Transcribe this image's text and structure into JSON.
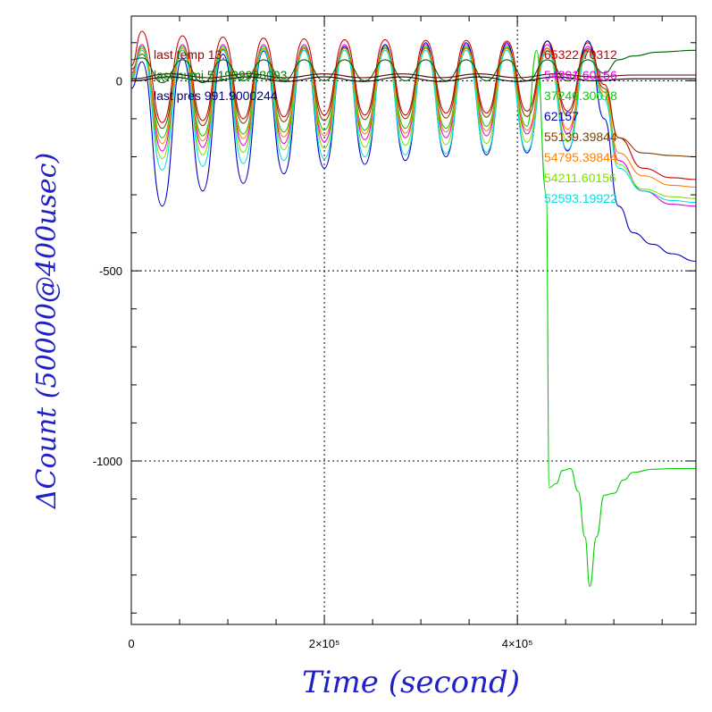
{
  "chart_data": {
    "type": "line",
    "title": "",
    "xlabel": "Time (second)",
    "ylabel": "ΔCount (50000@400usec)",
    "xlim": [
      0,
      585000
    ],
    "ylim": [
      -1430,
      170
    ],
    "x_ticks": [
      {
        "value": 0,
        "label": "0"
      },
      {
        "value": 200000,
        "label": "2×10⁵"
      },
      {
        "value": 400000,
        "label": "4×10⁵"
      }
    ],
    "y_ticks": [
      {
        "value": 0,
        "label": "0"
      },
      {
        "value": -500,
        "label": "-500"
      },
      {
        "value": -1000,
        "label": "-1000"
      }
    ],
    "grid": true,
    "annotations_left": [
      {
        "text": "last temp 13.",
        "color": "#a00000"
      },
      {
        "text": "last humi 5.1999998093",
        "color": "#008000"
      },
      {
        "text": "last pres 991.9000244",
        "color": "#000080"
      }
    ],
    "series": [
      {
        "name": "65322.70312",
        "color": "#c80000",
        "x": [
          0,
          11000,
          32000,
          53000,
          74000,
          95000,
          116000,
          137000,
          158000,
          179000,
          200000,
          221000,
          242000,
          263000,
          284000,
          305000,
          326000,
          347000,
          368000,
          389000,
          410000,
          431000,
          452000,
          473000,
          490000,
          505000,
          530000,
          560000,
          585000
        ],
        "values": [
          40,
          130,
          -110,
          118,
          -105,
          115,
          -100,
          112,
          -95,
          110,
          -90,
          108,
          -90,
          108,
          -90,
          106,
          -85,
          106,
          -85,
          104,
          -80,
          104,
          -80,
          100,
          -10,
          -150,
          -230,
          -255,
          -260
        ]
      },
      {
        "name": "54391.60156",
        "color": "#e000e0",
        "x": [
          0,
          11000,
          32000,
          53000,
          74000,
          95000,
          116000,
          137000,
          158000,
          179000,
          200000,
          221000,
          242000,
          263000,
          284000,
          305000,
          326000,
          347000,
          368000,
          389000,
          410000,
          431000,
          452000,
          473000,
          490000,
          505000,
          530000,
          560000,
          585000
        ],
        "values": [
          20,
          95,
          -185,
          95,
          -175,
          95,
          -170,
          95,
          -165,
          95,
          -160,
          95,
          -155,
          95,
          -150,
          95,
          -150,
          95,
          -145,
          95,
          -140,
          95,
          -140,
          90,
          -30,
          -210,
          -290,
          -325,
          -330
        ]
      },
      {
        "name": "37246.30078",
        "color": "#00d000",
        "x": [
          0,
          11000,
          32000,
          53000,
          74000,
          95000,
          116000,
          137000,
          158000,
          179000,
          200000,
          221000,
          242000,
          263000,
          284000,
          305000,
          326000,
          347000,
          368000,
          389000,
          410000,
          420000,
          430000,
          433000,
          440000,
          447000,
          455000,
          463000,
          470000,
          475000,
          482000,
          490000,
          500000,
          510000,
          520000,
          540000,
          560000,
          585000
        ],
        "values": [
          10,
          90,
          -150,
          90,
          -145,
          90,
          -140,
          90,
          -135,
          90,
          -130,
          90,
          -130,
          90,
          -125,
          90,
          -125,
          90,
          -120,
          90,
          -120,
          80,
          -300,
          -1070,
          -1060,
          -1025,
          -1020,
          -1080,
          -1200,
          -1330,
          -1200,
          -1090,
          -1085,
          -1050,
          -1030,
          -1022,
          -1020,
          -1020
        ]
      },
      {
        "name": "62157",
        "color": "#0000c0",
        "x": [
          0,
          11000,
          32000,
          53000,
          74000,
          95000,
          116000,
          137000,
          158000,
          179000,
          200000,
          221000,
          242000,
          263000,
          284000,
          305000,
          326000,
          347000,
          368000,
          389000,
          410000,
          431000,
          452000,
          473000,
          490000,
          505000,
          520000,
          540000,
          560000,
          585000
        ],
        "values": [
          -20,
          50,
          -330,
          60,
          -290,
          70,
          -270,
          78,
          -245,
          85,
          -230,
          90,
          -220,
          95,
          -210,
          100,
          -200,
          100,
          -195,
          100,
          -190,
          105,
          -185,
          105,
          -100,
          -330,
          -400,
          -430,
          -455,
          -475
        ]
      },
      {
        "name": "55139.39844",
        "color": "#804000",
        "x": [
          0,
          11000,
          32000,
          53000,
          74000,
          95000,
          116000,
          137000,
          158000,
          179000,
          200000,
          221000,
          242000,
          263000,
          284000,
          305000,
          326000,
          347000,
          368000,
          389000,
          410000,
          431000,
          452000,
          473000,
          490000,
          505000,
          530000,
          560000,
          585000
        ],
        "values": [
          30,
          70,
          -125,
          80,
          -118,
          82,
          -112,
          84,
          -108,
          86,
          -105,
          86,
          -102,
          86,
          -100,
          86,
          -98,
          86,
          -96,
          86,
          -94,
          86,
          -92,
          84,
          -20,
          -150,
          -190,
          -197,
          -200
        ]
      },
      {
        "name": "54795.39844",
        "color": "#ff8000",
        "x": [
          0,
          11000,
          32000,
          53000,
          74000,
          95000,
          116000,
          137000,
          158000,
          179000,
          200000,
          221000,
          242000,
          263000,
          284000,
          305000,
          326000,
          347000,
          368000,
          389000,
          410000,
          431000,
          452000,
          473000,
          490000,
          505000,
          530000,
          560000,
          585000
        ],
        "values": [
          15,
          85,
          -165,
          85,
          -158,
          85,
          -152,
          85,
          -148,
          85,
          -145,
          85,
          -140,
          85,
          -138,
          85,
          -135,
          85,
          -132,
          85,
          -130,
          85,
          -128,
          82,
          -30,
          -190,
          -250,
          -275,
          -280
        ]
      },
      {
        "name": "54211.60156",
        "color": "#80e000",
        "x": [
          0,
          11000,
          32000,
          53000,
          74000,
          95000,
          116000,
          137000,
          158000,
          179000,
          200000,
          221000,
          242000,
          263000,
          284000,
          305000,
          326000,
          347000,
          368000,
          389000,
          410000,
          431000,
          452000,
          473000,
          490000,
          505000,
          530000,
          560000,
          585000
        ],
        "values": [
          5,
          80,
          -205,
          80,
          -195,
          80,
          -188,
          80,
          -182,
          80,
          -178,
          80,
          -175,
          80,
          -170,
          80,
          -168,
          80,
          -165,
          80,
          -162,
          80,
          -160,
          78,
          -40,
          -220,
          -285,
          -305,
          -310
        ]
      },
      {
        "name": "52593.19922",
        "color": "#00e0e0",
        "x": [
          0,
          11000,
          32000,
          53000,
          74000,
          95000,
          116000,
          137000,
          158000,
          179000,
          200000,
          221000,
          242000,
          263000,
          284000,
          305000,
          326000,
          347000,
          368000,
          389000,
          410000,
          431000,
          452000,
          473000,
          490000,
          505000,
          530000,
          560000,
          585000
        ],
        "values": [
          0,
          80,
          -235,
          80,
          -225,
          80,
          -218,
          80,
          -210,
          80,
          -205,
          80,
          -200,
          80,
          -195,
          80,
          -192,
          80,
          -188,
          80,
          -185,
          80,
          -182,
          78,
          -50,
          -230,
          -290,
          -315,
          -320
        ]
      },
      {
        "name": "",
        "color": "#006000",
        "x": [
          0,
          11000,
          32000,
          53000,
          74000,
          95000,
          116000,
          137000,
          158000,
          179000,
          200000,
          221000,
          242000,
          263000,
          284000,
          305000,
          326000,
          347000,
          368000,
          389000,
          410000,
          431000,
          452000,
          473000,
          490000,
          505000,
          520000,
          545000,
          585000
        ],
        "values": [
          55,
          60,
          -5,
          55,
          -5,
          55,
          0,
          55,
          0,
          55,
          0,
          55,
          0,
          55,
          0,
          55,
          0,
          55,
          0,
          55,
          0,
          55,
          0,
          55,
          20,
          55,
          65,
          75,
          80
        ]
      },
      {
        "name": "",
        "color": "#600000",
        "x": [
          0,
          40000,
          80000,
          120000,
          160000,
          200000,
          240000,
          280000,
          320000,
          360000,
          400000,
          440000,
          480000,
          520000,
          585000
        ],
        "values": [
          5,
          18,
          8,
          18,
          8,
          18,
          8,
          18,
          8,
          18,
          8,
          18,
          10,
          15,
          15
        ]
      },
      {
        "name": "",
        "color": "#000000",
        "x": [
          0,
          40000,
          80000,
          120000,
          160000,
          200000,
          240000,
          280000,
          320000,
          360000,
          400000,
          440000,
          480000,
          520000,
          585000
        ],
        "values": [
          0,
          10,
          -2,
          10,
          -2,
          10,
          -2,
          10,
          -2,
          10,
          -2,
          10,
          0,
          5,
          5
        ]
      }
    ]
  }
}
